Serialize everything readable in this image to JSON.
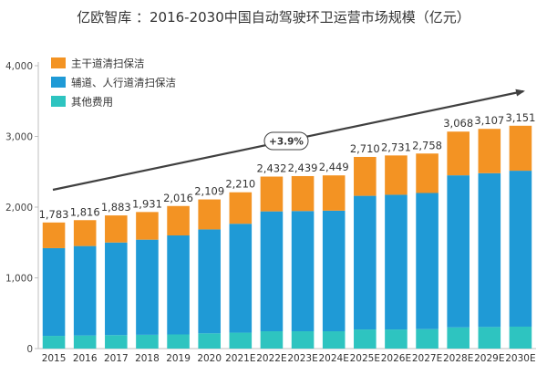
{
  "chart_data": {
    "type": "bar",
    "stacked": true,
    "title": "亿欧智库 ：2016-2030中国自动驾驶环卫运营市场规模（亿元）",
    "categories": [
      "2015",
      "2016",
      "2017",
      "2018",
      "2019",
      "2020",
      "2021E",
      "2022E",
      "2023E",
      "2024E",
      "2025E",
      "2026E",
      "2027E",
      "2028E",
      "2029E",
      "2030E"
    ],
    "totals": [
      1783,
      1816,
      1883,
      1931,
      2016,
      2109,
      2210,
      2432,
      2439,
      2449,
      2710,
      2731,
      2758,
      3068,
      3107,
      3151
    ],
    "total_labels": [
      "1,783",
      "1,816",
      "1,883",
      "1,931",
      "2,016",
      "2,109",
      "2,210",
      "2,432",
      "2,439",
      "2,449",
      "2,710",
      "2,731",
      "2,758",
      "3,068",
      "3,107",
      "3,151"
    ],
    "series": [
      {
        "name": "其他费用",
        "color": "#2ec4c0",
        "values": [
          180,
          185,
          190,
          195,
          200,
          215,
          225,
          245,
          245,
          245,
          270,
          270,
          275,
          300,
          305,
          310
        ]
      },
      {
        "name": "辅道、人行道清扫保洁",
        "color": "#1f9ad6",
        "values": [
          1240,
          1265,
          1310,
          1345,
          1400,
          1470,
          1540,
          1695,
          1700,
          1705,
          1890,
          1905,
          1925,
          2150,
          2175,
          2205
        ]
      },
      {
        "name": "主干道清扫保洁",
        "color": "#f39323",
        "values": [
          363,
          366,
          383,
          391,
          416,
          424,
          445,
          492,
          494,
          499,
          550,
          556,
          558,
          618,
          627,
          636
        ]
      }
    ],
    "legend_order": [
      "主干道清扫保洁",
      "辅道、人行道清扫保洁",
      "其他费用"
    ],
    "ylim": [
      0,
      4000
    ],
    "yticks": [
      "0",
      "1,000",
      "2,000",
      "3,000",
      "4,000"
    ],
    "annotation": {
      "text": "+3.9%",
      "type": "CAGR arrow"
    },
    "xlabel": "",
    "ylabel": ""
  }
}
